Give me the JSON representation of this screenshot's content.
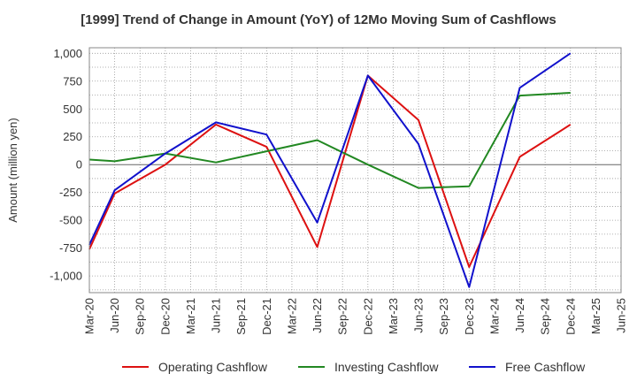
{
  "chart_data": {
    "type": "line",
    "title": "[1999]  Trend of Change in Amount (YoY) of 12Mo Moving Sum of Cashflows",
    "xlabel": "",
    "ylabel": "Amount (million yen)",
    "ylim": [
      -1150,
      1050
    ],
    "yticks": [
      1000,
      750,
      500,
      250,
      0,
      -250,
      -500,
      -750,
      -1000
    ],
    "ytick_labels": [
      "1,000",
      "750",
      "500",
      "250",
      "0",
      "-250",
      "-500",
      "-750",
      "-1,000"
    ],
    "categories": [
      "Mar-20",
      "Jun-20",
      "Sep-20",
      "Dec-20",
      "Mar-21",
      "Jun-21",
      "Sep-21",
      "Dec-21",
      "Mar-22",
      "Jun-22",
      "Sep-22",
      "Dec-22",
      "Mar-23",
      "Jun-23",
      "Sep-23",
      "Dec-23",
      "Mar-24",
      "Jun-24",
      "Sep-24",
      "Dec-24",
      "Mar-25",
      "Jun-25"
    ],
    "grid": true,
    "legend_position": "bottom",
    "series": [
      {
        "name": "Operating Cashflow",
        "color": "#dd1111",
        "values": [
          -760,
          -260,
          null,
          0,
          null,
          360,
          null,
          160,
          null,
          -740,
          null,
          800,
          null,
          400,
          null,
          -920,
          null,
          70,
          null,
          360,
          null,
          null
        ]
      },
      {
        "name": "Investing Cashflow",
        "color": "#228822",
        "values": [
          45,
          30,
          null,
          100,
          null,
          20,
          null,
          120,
          null,
          220,
          null,
          0,
          null,
          -210,
          null,
          -195,
          null,
          620,
          null,
          645,
          null,
          null
        ]
      },
      {
        "name": "Free Cashflow",
        "color": "#1111cc",
        "values": [
          -720,
          -230,
          null,
          100,
          null,
          380,
          null,
          270,
          null,
          -520,
          null,
          800,
          null,
          185,
          null,
          -1100,
          null,
          690,
          null,
          1000,
          null,
          null
        ]
      }
    ]
  }
}
